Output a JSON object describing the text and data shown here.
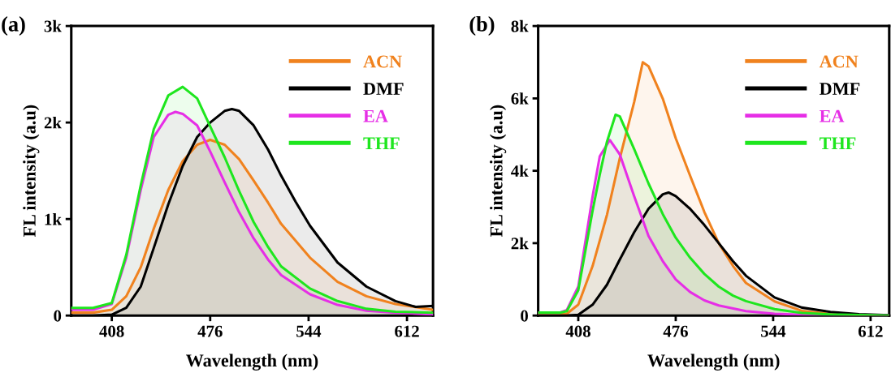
{
  "chart_data": [
    {
      "type": "area",
      "title": "(a)",
      "xlabel": "Wavelength (nm)",
      "ylabel": "FL intensity (a.u)",
      "xlim": [
        380,
        630
      ],
      "xticks": [
        408,
        476,
        544,
        612
      ],
      "ylim": [
        0,
        3000
      ],
      "yticks": [
        0,
        {
          "value": 1000,
          "label": "1k"
        },
        {
          "value": 2000,
          "label": "2k"
        },
        {
          "value": 3000,
          "label": "3k"
        }
      ],
      "grid": false,
      "legend": "top right",
      "series": [
        {
          "name": "ACN",
          "color": "#f0821e",
          "x": [
            380,
            395,
            408,
            418,
            428,
            437,
            447,
            457,
            467,
            476,
            486,
            496,
            506,
            516,
            525,
            545,
            564,
            584,
            604,
            630
          ],
          "values": [
            30,
            30,
            60,
            200,
            500,
            900,
            1300,
            1600,
            1770,
            1820,
            1770,
            1620,
            1400,
            1170,
            950,
            600,
            350,
            200,
            120,
            60
          ]
        },
        {
          "name": "DMF",
          "color": "#000000",
          "x": [
            380,
            395,
            408,
            418,
            428,
            437,
            447,
            457,
            467,
            476,
            486,
            491,
            496,
            506,
            516,
            525,
            535,
            545,
            564,
            584,
            604,
            618,
            630
          ],
          "values": [
            0,
            0,
            10,
            80,
            300,
            700,
            1150,
            1550,
            1850,
            2000,
            2120,
            2140,
            2120,
            1970,
            1720,
            1450,
            1180,
            930,
            550,
            300,
            150,
            90,
            100
          ]
        },
        {
          "name": "EA",
          "color": "#e62ee6",
          "x": [
            380,
            395,
            408,
            418,
            428,
            437,
            447,
            452,
            457,
            467,
            476,
            486,
            496,
            506,
            516,
            525,
            545,
            564,
            584,
            604,
            630
          ],
          "values": [
            60,
            60,
            120,
            600,
            1300,
            1850,
            2080,
            2110,
            2090,
            1970,
            1700,
            1380,
            1070,
            800,
            580,
            420,
            220,
            110,
            50,
            30,
            10
          ]
        },
        {
          "name": "THF",
          "color": "#1ee61e",
          "x": [
            380,
            395,
            408,
            418,
            428,
            437,
            447,
            457,
            467,
            476,
            486,
            496,
            506,
            516,
            525,
            545,
            564,
            584,
            604,
            630
          ],
          "values": [
            80,
            80,
            130,
            630,
            1350,
            1930,
            2280,
            2370,
            2250,
            1960,
            1640,
            1290,
            970,
            710,
            510,
            280,
            150,
            70,
            40,
            30
          ]
        }
      ]
    },
    {
      "type": "area",
      "title": "(b)",
      "xlabel": "Wavelength (nm)",
      "ylabel": "FL intensity (a.u)",
      "xlim": [
        380,
        625
      ],
      "xticks": [
        408,
        476,
        544,
        612
      ],
      "ylim": [
        0,
        8000
      ],
      "yticks": [
        0,
        {
          "value": 2000,
          "label": "2k"
        },
        {
          "value": 4000,
          "label": "4k"
        },
        {
          "value": 6000,
          "label": "6k"
        },
        {
          "value": 8000,
          "label": "8k"
        }
      ],
      "grid": false,
      "legend": "top right",
      "series": [
        {
          "name": "ACN",
          "color": "#f0821e",
          "x": [
            380,
            400,
            408,
            418,
            428,
            437,
            447,
            453,
            457,
            467,
            476,
            486,
            496,
            506,
            516,
            525,
            545,
            564,
            584,
            604,
            625
          ],
          "values": [
            50,
            50,
            300,
            1370,
            2780,
            4350,
            5900,
            7000,
            6890,
            5990,
            4900,
            3870,
            2860,
            2000,
            1370,
            900,
            390,
            130,
            40,
            10,
            0
          ]
        },
        {
          "name": "DMF",
          "color": "#000000",
          "x": [
            380,
            400,
            408,
            418,
            428,
            437,
            447,
            457,
            467,
            471,
            476,
            486,
            496,
            506,
            516,
            525,
            545,
            564,
            584,
            604,
            625
          ],
          "values": [
            0,
            0,
            20,
            300,
            850,
            1550,
            2300,
            2950,
            3350,
            3400,
            3300,
            2950,
            2500,
            2000,
            1500,
            1100,
            500,
            220,
            100,
            40,
            10
          ]
        },
        {
          "name": "EA",
          "color": "#e62ee6",
          "x": [
            380,
            395,
            400,
            408,
            412,
            418,
            423,
            430,
            437,
            447,
            457,
            467,
            476,
            486,
            496,
            506,
            525,
            545,
            564,
            625
          ],
          "values": [
            80,
            80,
            150,
            800,
            1800,
            3300,
            4400,
            4850,
            4450,
            3300,
            2200,
            1500,
            1000,
            650,
            420,
            280,
            120,
            50,
            20,
            0
          ]
        },
        {
          "name": "THF",
          "color": "#1ee61e",
          "x": [
            380,
            395,
            400,
            408,
            418,
            423,
            428,
            434,
            437,
            447,
            457,
            467,
            476,
            486,
            496,
            506,
            516,
            525,
            545,
            564,
            584,
            625
          ],
          "values": [
            80,
            80,
            120,
            700,
            2900,
            3900,
            4800,
            5550,
            5500,
            4600,
            3650,
            2800,
            2150,
            1600,
            1150,
            800,
            550,
            400,
            180,
            70,
            30,
            0
          ]
        }
      ]
    }
  ]
}
